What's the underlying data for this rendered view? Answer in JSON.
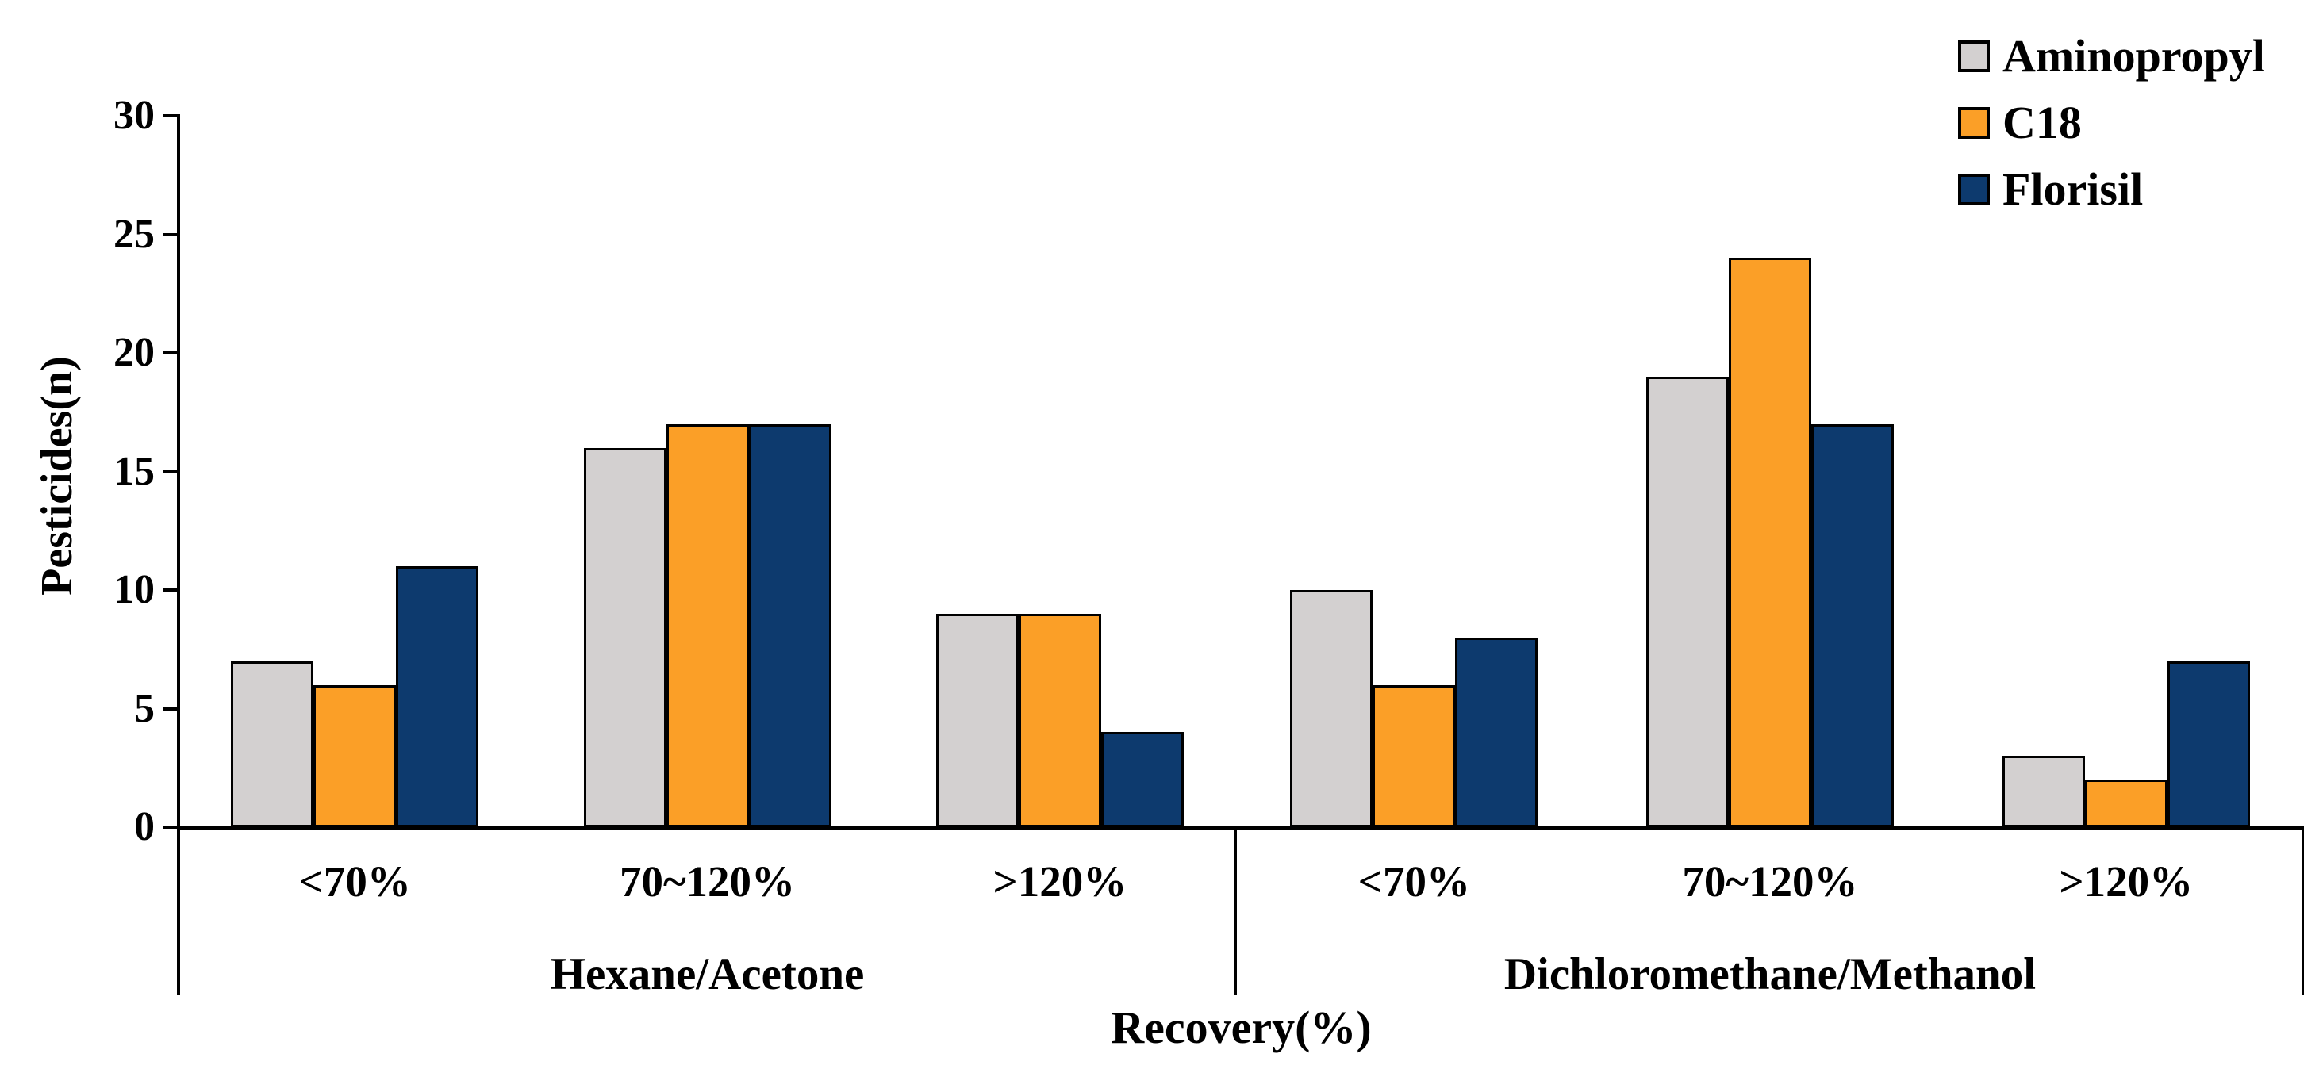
{
  "chart_data": {
    "type": "bar",
    "title": "",
    "ylabel": "Pesticides(n)",
    "xlabel": "Recovery(%)",
    "ylim": [
      0,
      30
    ],
    "yticks": [
      0,
      5,
      10,
      15,
      20,
      25,
      30
    ],
    "grid": false,
    "legend_position": "top-right",
    "legend": [
      {
        "label": "Aminopropyl",
        "color": "#d3d0d0"
      },
      {
        "label": "C18",
        "color": "#fb9f27"
      },
      {
        "label": "Florisil",
        "color": "#0d3a6e"
      }
    ],
    "sections": [
      {
        "label": "Hexane/Acetone",
        "categories": [
          "<70%",
          "70~120%",
          ">120%"
        ],
        "series": [
          {
            "name": "Aminopropyl",
            "values": [
              7,
              16,
              9
            ]
          },
          {
            "name": "C18",
            "values": [
              6,
              17,
              9
            ]
          },
          {
            "name": "Florisil",
            "values": [
              11,
              17,
              4
            ]
          }
        ]
      },
      {
        "label": "Dichloromethane/Methanol",
        "categories": [
          "<70%",
          "70~120%",
          ">120%"
        ],
        "series": [
          {
            "name": "Aminopropyl",
            "values": [
              10,
              19,
              3
            ]
          },
          {
            "name": "C18",
            "values": [
              6,
              24,
              2
            ]
          },
          {
            "name": "Florisil",
            "values": [
              8,
              17,
              7
            ]
          }
        ]
      }
    ]
  }
}
